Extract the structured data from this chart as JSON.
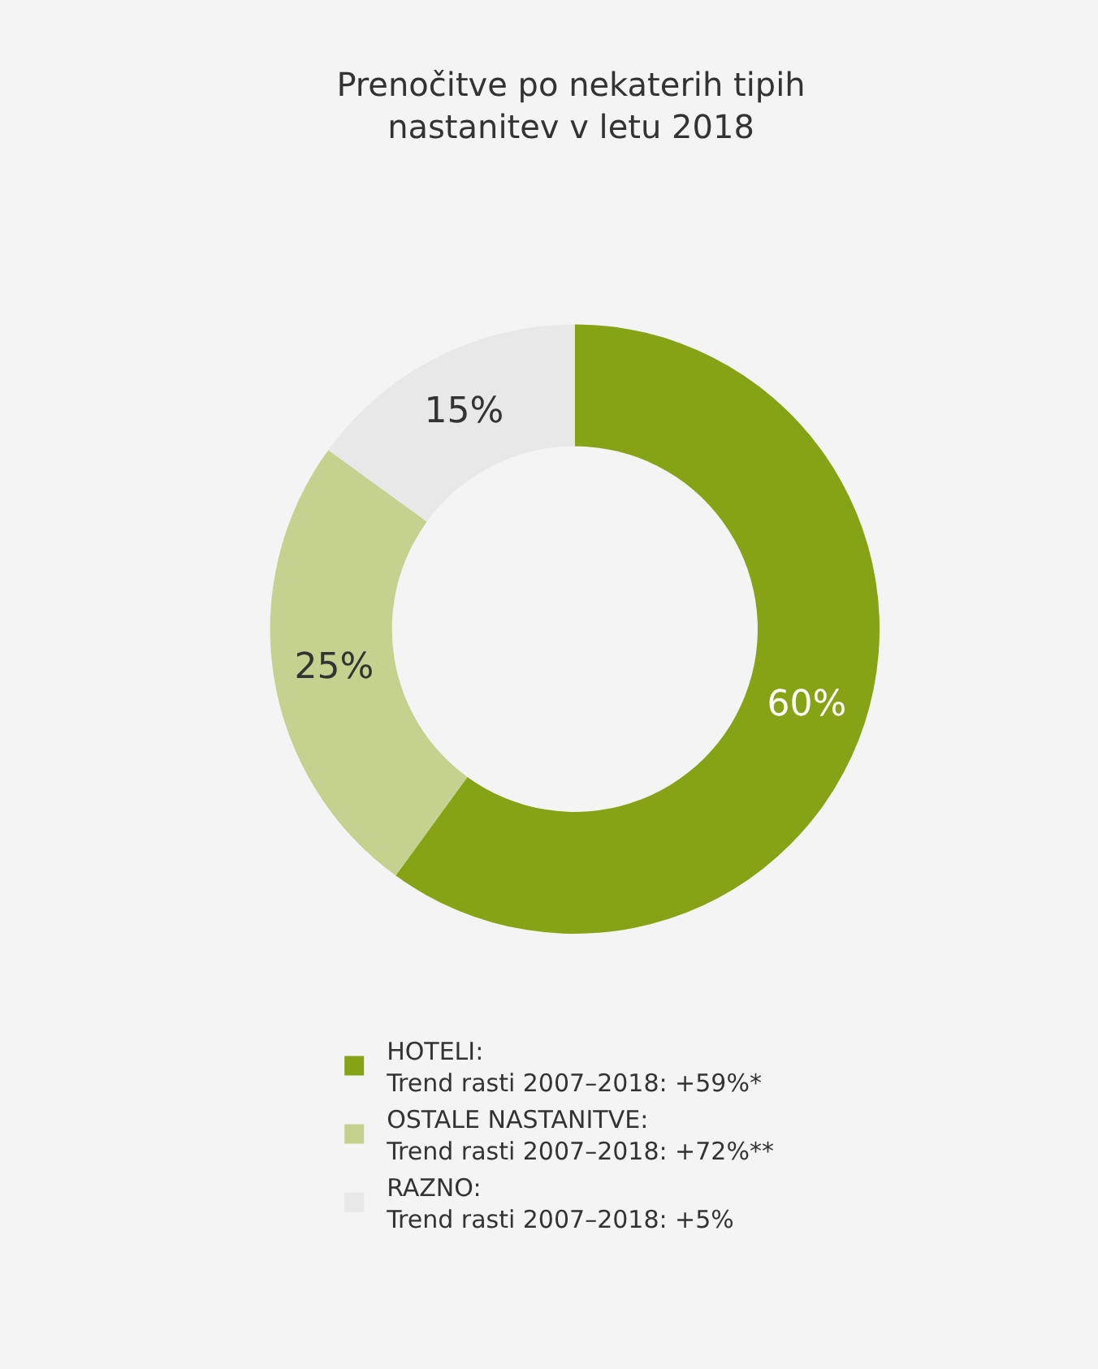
{
  "chart_data": {
    "type": "donut",
    "title": "Prenočitve po nekaterih tipih\nnastanitev v letu 2018",
    "categories": [
      "HOTELI:\nTrend rasti 2007–2018: +59%*",
      "OSTALE NASTANITVE:\nTrend rasti 2007–2018: +72%**",
      "RAZNO:\nTrend rasti 2007–2018: +5%"
    ],
    "values": [
      60,
      25,
      15
    ],
    "colors": [
      "#86a316",
      "#c4d18f",
      "#e8e8e8"
    ],
    "value_labels": [
      "60%",
      "25%",
      "15%"
    ],
    "legend": "bottom"
  }
}
